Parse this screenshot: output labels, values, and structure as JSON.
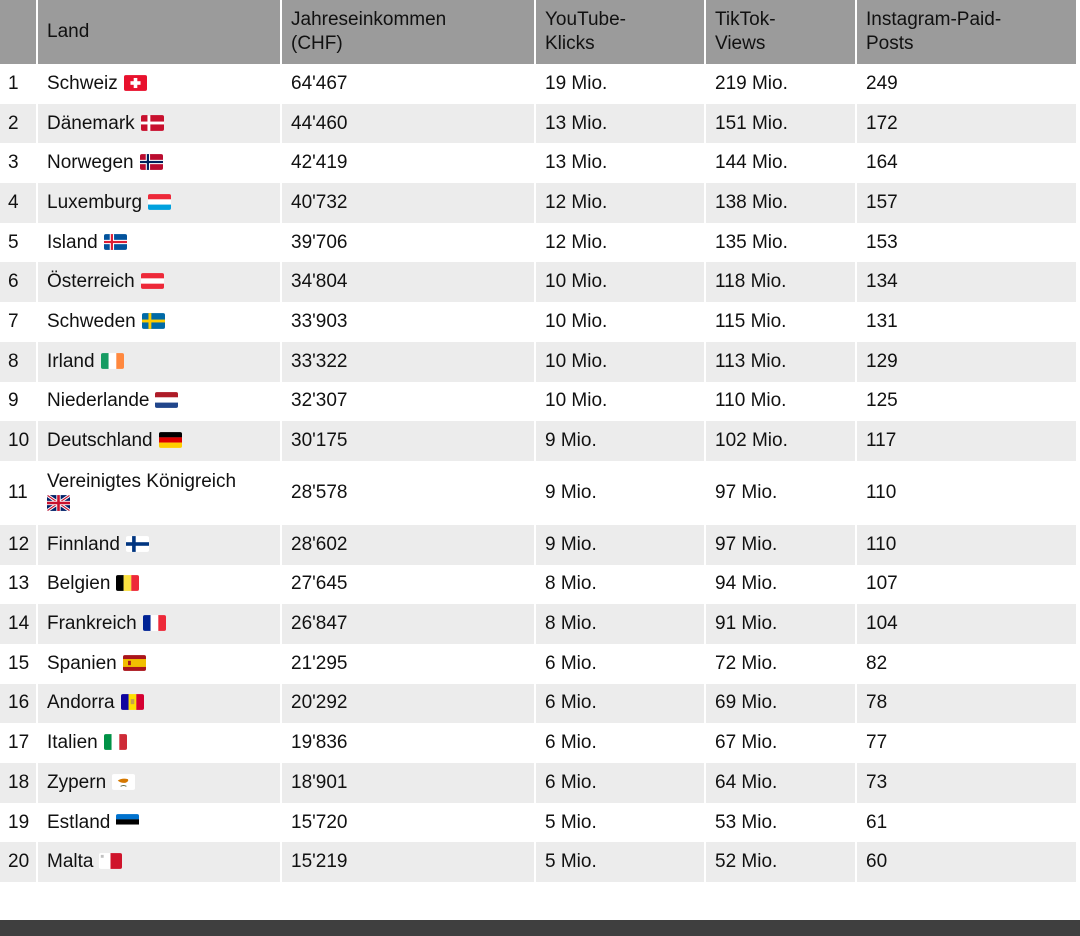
{
  "table": {
    "headers": [
      "",
      "Land",
      "Jahreseinkommen (CHF)",
      "YouTube-Klicks",
      "TikTok-Views",
      "Instagram-Paid-Posts"
    ],
    "header_lines": [
      [
        ""
      ],
      [
        "Land"
      ],
      [
        "Jahreseinkommen",
        "(CHF)"
      ],
      [
        "YouTube-",
        "Klicks"
      ],
      [
        "TikTok-",
        "Views"
      ],
      [
        "Instagram-Paid-",
        "Posts"
      ]
    ],
    "rows": [
      {
        "rank": "1",
        "country": "Schweiz",
        "flag": "ch",
        "income": "64'467",
        "youtube": "19 Mio.",
        "tiktok": "219 Mio.",
        "instagram": "249"
      },
      {
        "rank": "2",
        "country": "Dänemark",
        "flag": "dk",
        "income": "44'460",
        "youtube": "13 Mio.",
        "tiktok": "151 Mio.",
        "instagram": "172"
      },
      {
        "rank": "3",
        "country": "Norwegen",
        "flag": "no",
        "income": "42'419",
        "youtube": "13 Mio.",
        "tiktok": "144 Mio.",
        "instagram": "164"
      },
      {
        "rank": "4",
        "country": "Luxemburg",
        "flag": "lu",
        "income": "40'732",
        "youtube": "12 Mio.",
        "tiktok": "138 Mio.",
        "instagram": "157"
      },
      {
        "rank": "5",
        "country": "Island",
        "flag": "is",
        "income": "39'706",
        "youtube": "12 Mio.",
        "tiktok": "135 Mio.",
        "instagram": "153"
      },
      {
        "rank": "6",
        "country": "Österreich",
        "flag": "at",
        "income": "34'804",
        "youtube": "10 Mio.",
        "tiktok": "118 Mio.",
        "instagram": "134"
      },
      {
        "rank": "7",
        "country": "Schweden",
        "flag": "se",
        "income": "33'903",
        "youtube": "10 Mio.",
        "tiktok": "115 Mio.",
        "instagram": "131"
      },
      {
        "rank": "8",
        "country": "Irland",
        "flag": "ie",
        "income": "33'322",
        "youtube": "10 Mio.",
        "tiktok": "113 Mio.",
        "instagram": "129"
      },
      {
        "rank": "9",
        "country": "Niederlande",
        "flag": "nl",
        "income": "32'307",
        "youtube": "10 Mio.",
        "tiktok": "110 Mio.",
        "instagram": "125"
      },
      {
        "rank": "10",
        "country": "Deutschland",
        "flag": "de",
        "income": "30'175",
        "youtube": "9 Mio.",
        "tiktok": "102 Mio.",
        "instagram": "117"
      },
      {
        "rank": "11",
        "country": "Vereinigtes Königreich",
        "flag": "gb",
        "income": "28'578",
        "youtube": "9 Mio.",
        "tiktok": "97 Mio.",
        "instagram": "110"
      },
      {
        "rank": "12",
        "country": "Finnland",
        "flag": "fi",
        "income": "28'602",
        "youtube": "9 Mio.",
        "tiktok": "97 Mio.",
        "instagram": "110"
      },
      {
        "rank": "13",
        "country": "Belgien",
        "flag": "be",
        "income": "27'645",
        "youtube": "8 Mio.",
        "tiktok": "94 Mio.",
        "instagram": "107"
      },
      {
        "rank": "14",
        "country": "Frankreich",
        "flag": "fr",
        "income": "26'847",
        "youtube": "8 Mio.",
        "tiktok": "91 Mio.",
        "instagram": "104"
      },
      {
        "rank": "15",
        "country": "Spanien",
        "flag": "es",
        "income": "21'295",
        "youtube": "6 Mio.",
        "tiktok": "72 Mio.",
        "instagram": "82"
      },
      {
        "rank": "16",
        "country": "Andorra",
        "flag": "ad",
        "income": "20'292",
        "youtube": "6 Mio.",
        "tiktok": "69 Mio.",
        "instagram": "78"
      },
      {
        "rank": "17",
        "country": "Italien",
        "flag": "it",
        "income": "19'836",
        "youtube": "6 Mio.",
        "tiktok": "67 Mio.",
        "instagram": "77"
      },
      {
        "rank": "18",
        "country": "Zypern",
        "flag": "cy",
        "income": "18'901",
        "youtube": "6 Mio.",
        "tiktok": "64 Mio.",
        "instagram": "73"
      },
      {
        "rank": "19",
        "country": "Estland",
        "flag": "ee",
        "income": "15'720",
        "youtube": "5 Mio.",
        "tiktok": "53 Mio.",
        "instagram": "61"
      },
      {
        "rank": "20",
        "country": "Malta",
        "flag": "mt",
        "income": "15'219",
        "youtube": "5 Mio.",
        "tiktok": "52 Mio.",
        "instagram": "60"
      }
    ]
  },
  "colors": {
    "header_bg": "#9b9b9b",
    "row_alt_bg": "#ececec",
    "footer_bar": "#3f3f3f"
  }
}
